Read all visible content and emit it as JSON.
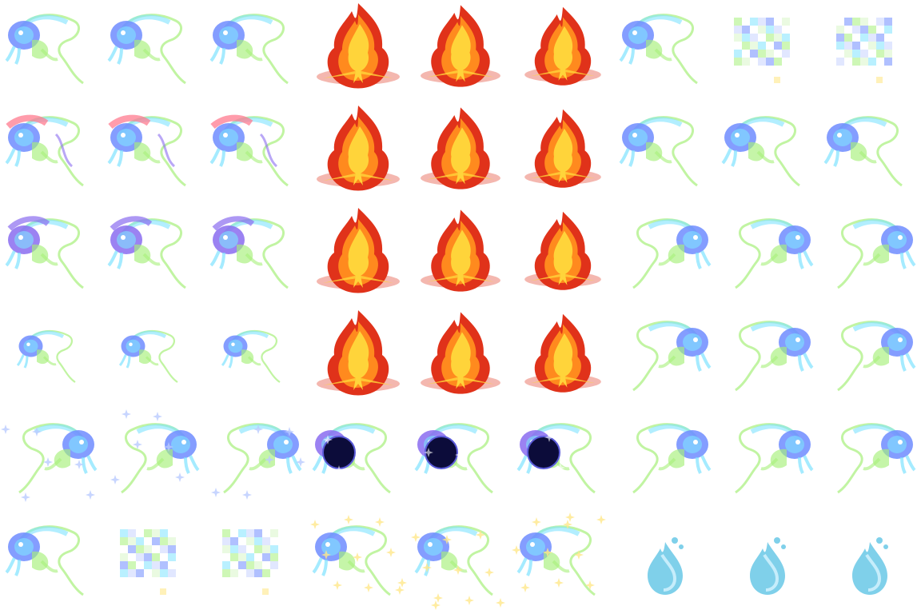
{
  "sheet": {
    "columns": 9,
    "rows": 6,
    "background": "#ffffff",
    "palette": {
      "spirit_blue": "#6f8cff",
      "spirit_cyan": "#7fe3ff",
      "spirit_green": "#a6f07a",
      "spirit_violet": "#8a6cf0",
      "spirit_pink": "#ff7b8f",
      "flame_red": "#e0321a",
      "flame_orange": "#ff8a1e",
      "flame_yellow": "#ffd43a",
      "sparkle": "#b9cbff",
      "gold_sparkle": "#ffe78a",
      "orb_dark": "#0c0c3a",
      "droplet": "#7fd0ea"
    }
  },
  "sprites": [
    [
      "spirit-left",
      "spirit-left",
      "spirit-left",
      "fire-burst",
      "fire-burst",
      "fire-burst",
      "spirit-left",
      "spirit-pixelated",
      "spirit-pixelated"
    ],
    [
      "spirit-pink-flare",
      "spirit-pink-flare",
      "spirit-pink-flare",
      "fire-burst",
      "fire-burst",
      "fire-burst",
      "spirit-left",
      "spirit-left",
      "spirit-left"
    ],
    [
      "spirit-violet",
      "spirit-violet",
      "spirit-violet",
      "fire-burst",
      "fire-burst",
      "fire-burst",
      "spirit-right",
      "spirit-right",
      "spirit-right"
    ],
    [
      "spirit-small",
      "spirit-small",
      "spirit-small",
      "fire-burst",
      "fire-burst",
      "fire-burst",
      "spirit-right",
      "spirit-right",
      "spirit-right"
    ],
    [
      "spirit-sparkle",
      "spirit-sparkle",
      "spirit-sparkle",
      "spirit-dark-orb",
      "spirit-dark-orb",
      "spirit-dark-orb",
      "spirit-right",
      "spirit-right",
      "spirit-right"
    ],
    [
      "spirit-left",
      "spirit-pixelated",
      "spirit-pixelated",
      "spirit-gold-sparkle",
      "spirit-gold-sparkle",
      "spirit-gold-sparkle",
      "water-droplet",
      "water-droplet",
      "water-droplet"
    ]
  ]
}
